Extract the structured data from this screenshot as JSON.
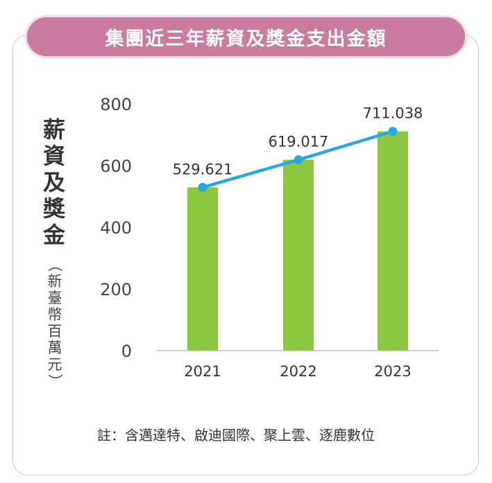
{
  "title": "集團近三年薪資及獎金支出金額",
  "y_axis_title_chars": [
    "薪",
    "資",
    "及",
    "獎",
    "金"
  ],
  "y_axis_unit_chars": [
    "（",
    "新",
    "臺",
    "幣",
    "百",
    "萬",
    "元",
    "）"
  ],
  "note": "註：含邁達特、啟迪國際、聚上雲、逐鹿數位",
  "colors": {
    "bar": "#8dc63f",
    "line": "#29a8dd",
    "title_bg": "#c97c9e",
    "frame": "#e7b7c9"
  },
  "chart_data": {
    "type": "bar",
    "categories": [
      "2021",
      "2022",
      "2023"
    ],
    "values": [
      529.621,
      619.017,
      711.038
    ],
    "data_labels": [
      "529.621",
      "619.017",
      "711.038"
    ],
    "overlay_line": true,
    "ylabel": "薪資及獎金（新臺幣百萬元）",
    "ylim": [
      0,
      800
    ],
    "yticks": [
      0,
      200,
      400,
      600,
      800
    ],
    "grid": false
  }
}
